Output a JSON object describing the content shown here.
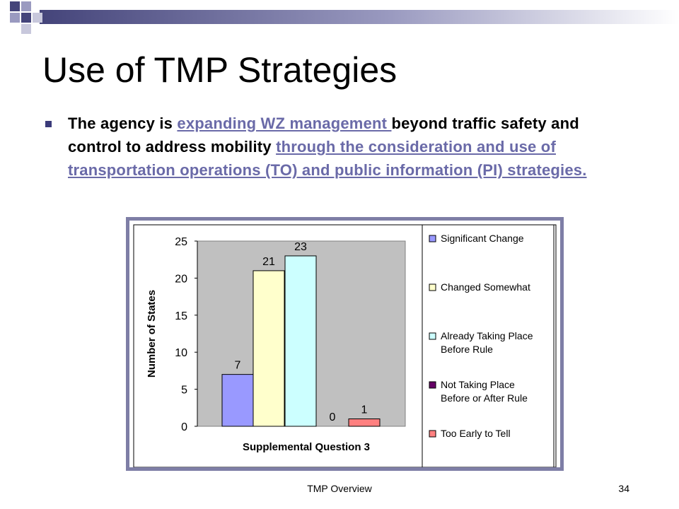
{
  "slide": {
    "title": "Use of TMP Strategies",
    "bullet": {
      "part1": "The agency is ",
      "link1": "expanding WZ management ",
      "part2": "beyond traffic safety and control to address mobility ",
      "link2": "through the consideration and use of transportation operations (TO) and public information (PI) strategies."
    },
    "footer": "TMP Overview",
    "page_number": "34"
  },
  "colors": {
    "bar_significant": "#9999ff",
    "bar_changed": "#ffffcc",
    "bar_already": "#ccffff",
    "bar_not_taking": "#660066",
    "bar_too_early": "#ff8080",
    "plot_bg": "#c0c0c0",
    "frame": "#7e7ea6",
    "link": "#6a6aa8"
  },
  "chart_data": {
    "type": "bar",
    "title": "",
    "xlabel": "Supplemental Question 3",
    "ylabel": "Number of States",
    "ylim": [
      0,
      25
    ],
    "yticks": [
      "0",
      "5",
      "10",
      "15",
      "20",
      "25"
    ],
    "grid": false,
    "legend_position": "right",
    "series": [
      {
        "name": "Significant Change",
        "value": 7,
        "label": "7",
        "color_key": "bar_significant"
      },
      {
        "name": "Changed Somewhat",
        "value": 21,
        "label": "21",
        "color_key": "bar_changed"
      },
      {
        "name": "Already Taking Place Before   Rule",
        "value": 23,
        "label": "23",
        "color_key": "bar_already"
      },
      {
        "name": "Not Taking Place Before or After Rule",
        "value": 0,
        "label": "0",
        "color_key": "bar_not_taking"
      },
      {
        "name": "Too Early to Tell",
        "value": 1,
        "label": "1",
        "color_key": "bar_too_early"
      }
    ],
    "legend": [
      {
        "line1": "Significant Change",
        "line2": ""
      },
      {
        "line1": "Changed Somewhat",
        "line2": ""
      },
      {
        "line1": "Already Taking Place",
        "line2": "Before   Rule"
      },
      {
        "line1": "Not Taking Place",
        "line2": "Before or After Rule"
      },
      {
        "line1": "Too Early to Tell",
        "line2": ""
      }
    ]
  }
}
